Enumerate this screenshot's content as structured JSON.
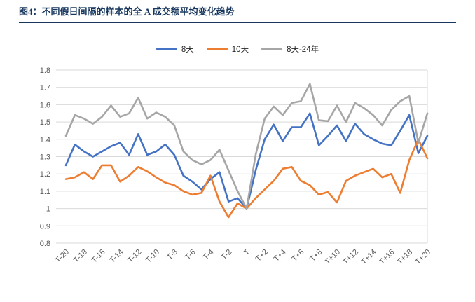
{
  "figure": {
    "title": "图4：不同假日间隔的样本的全 A 成交额平均变化趋势",
    "accent_color": "#17365D"
  },
  "legend": [
    {
      "label": "8天",
      "color": "#4472C4"
    },
    {
      "label": "10天",
      "color": "#ED7D31"
    },
    {
      "label": "8天-24年",
      "color": "#A6A6A6"
    }
  ],
  "chart_data": {
    "type": "line",
    "title": "图4：不同假日间隔的样本的全 A 成交额平均变化趋势",
    "xlabel": "",
    "ylabel": "",
    "ylim": [
      0.8,
      1.8
    ],
    "grid": "horizontal",
    "grid_color": "#D9D9D9",
    "axis_label_color": "#595959",
    "legend_position": "top-center",
    "y_ticks": [
      "1.8",
      "1.7",
      "1.6",
      "1.5",
      "1.4",
      "1.3",
      "1.2",
      "1.1",
      "1",
      "0.9",
      "0.8"
    ],
    "x_tick_labels": [
      "T-20",
      "T-18",
      "T-16",
      "T-14",
      "T-12",
      "T-10",
      "T-8",
      "T-6",
      "T-4",
      "T-2",
      "T",
      "T+2",
      "T+4",
      "T+6",
      "T+8",
      "T+10",
      "T+12",
      "T+14",
      "T+16",
      "T+18",
      "T+20"
    ],
    "x": [
      "T-20",
      "T-19",
      "T-18",
      "T-17",
      "T-16",
      "T-15",
      "T-14",
      "T-13",
      "T-12",
      "T-11",
      "T-10",
      "T-9",
      "T-8",
      "T-7",
      "T-6",
      "T-5",
      "T-4",
      "T-3",
      "T-2",
      "T-1",
      "T",
      "T+1",
      "T+2",
      "T+3",
      "T+4",
      "T+5",
      "T+6",
      "T+7",
      "T+8",
      "T+9",
      "T+10",
      "T+11",
      "T+12",
      "T+13",
      "T+14",
      "T+15",
      "T+16",
      "T+17",
      "T+18",
      "T+19",
      "T+20"
    ],
    "series": [
      {
        "name": "8天",
        "color": "#4472C4",
        "values": [
          1.25,
          1.37,
          1.33,
          1.3,
          1.33,
          1.36,
          1.38,
          1.31,
          1.43,
          1.31,
          1.33,
          1.37,
          1.31,
          1.19,
          1.155,
          1.11,
          1.17,
          1.21,
          1.04,
          1.06,
          1.0,
          1.22,
          1.4,
          1.485,
          1.39,
          1.47,
          1.47,
          1.55,
          1.365,
          1.42,
          1.48,
          1.39,
          1.49,
          1.43,
          1.4,
          1.375,
          1.365,
          1.45,
          1.54,
          1.32,
          1.42
        ]
      },
      {
        "name": "10天",
        "color": "#ED7D31",
        "values": [
          1.17,
          1.18,
          1.21,
          1.17,
          1.25,
          1.25,
          1.155,
          1.19,
          1.24,
          1.215,
          1.18,
          1.15,
          1.135,
          1.1,
          1.08,
          1.09,
          1.19,
          1.04,
          0.95,
          1.03,
          1.0,
          1.06,
          1.11,
          1.16,
          1.23,
          1.24,
          1.16,
          1.135,
          1.08,
          1.095,
          1.035,
          1.16,
          1.19,
          1.21,
          1.23,
          1.18,
          1.2,
          1.09,
          1.28,
          1.4,
          1.29
        ]
      },
      {
        "name": "8天-24年",
        "color": "#A6A6A6",
        "values": [
          1.42,
          1.54,
          1.52,
          1.49,
          1.53,
          1.595,
          1.53,
          1.55,
          1.64,
          1.52,
          1.555,
          1.53,
          1.48,
          1.33,
          1.28,
          1.255,
          1.28,
          1.34,
          1.22,
          1.1,
          1.0,
          1.31,
          1.52,
          1.59,
          1.54,
          1.61,
          1.62,
          1.72,
          1.51,
          1.505,
          1.595,
          1.5,
          1.61,
          1.58,
          1.54,
          1.48,
          1.57,
          1.62,
          1.65,
          1.38,
          1.55
        ]
      }
    ]
  }
}
